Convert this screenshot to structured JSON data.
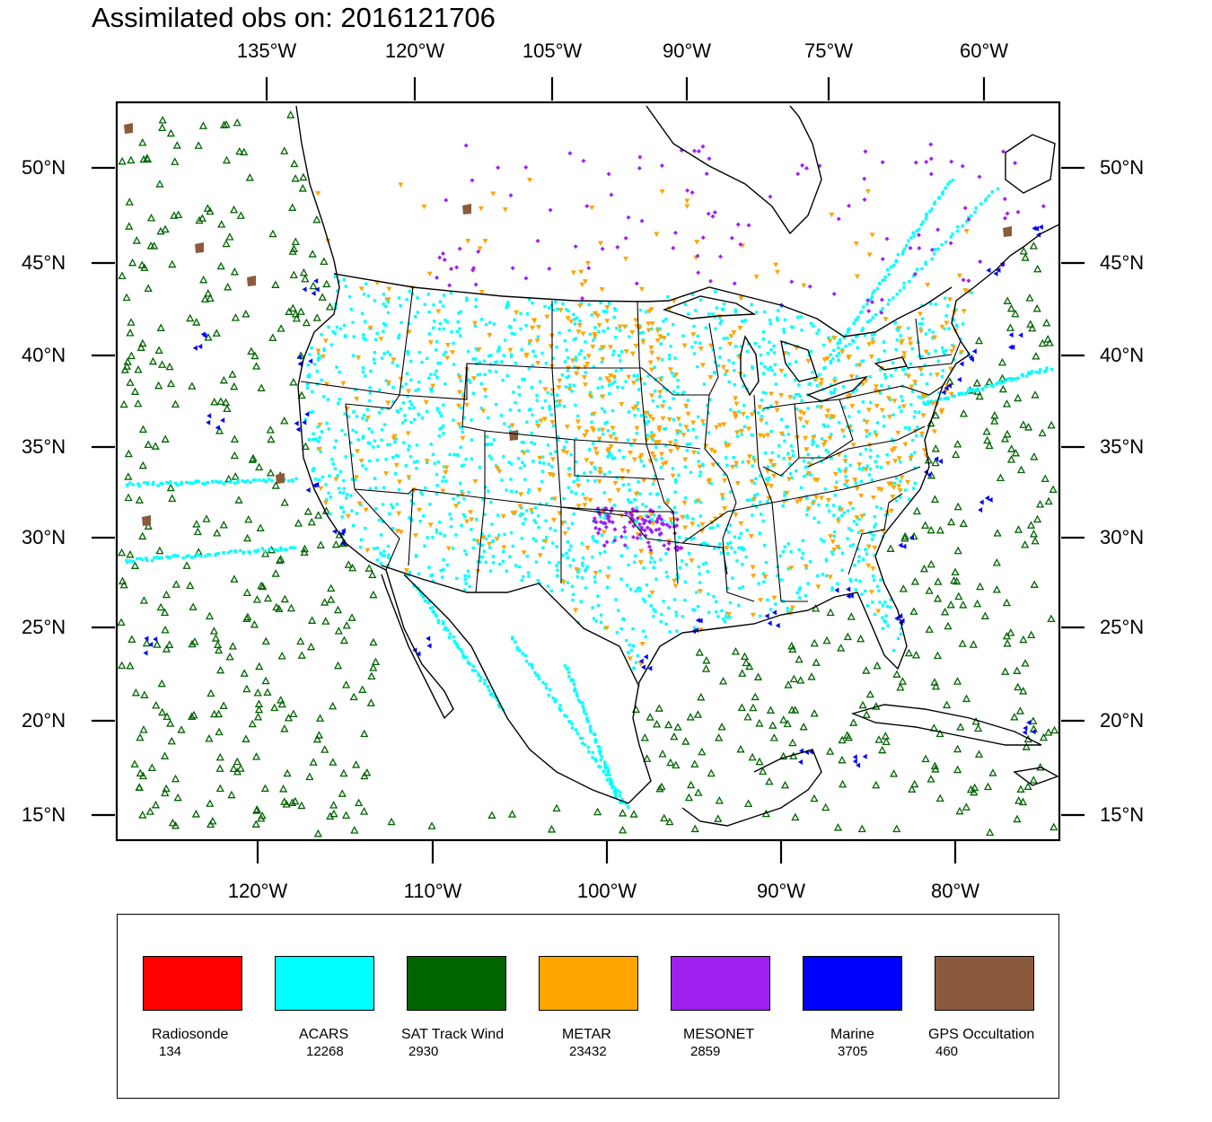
{
  "title": "Assimilated obs on: 2016121706",
  "axes": {
    "top_lon_labels": [
      "135°W",
      "120°W",
      "105°W",
      "90°W",
      "75°W",
      "60°W"
    ],
    "bottom_lon_labels": [
      "120°W",
      "110°W",
      "100°W",
      "90°W",
      "80°W"
    ],
    "lat_labels": [
      "50°N",
      "45°N",
      "40°N",
      "35°N",
      "30°N",
      "25°N",
      "20°N",
      "15°N"
    ]
  },
  "legend": [
    {
      "name": "Radiosonde",
      "count": "134",
      "color": "#ff0000"
    },
    {
      "name": "ACARS",
      "count": "12268",
      "color": "#00ffff"
    },
    {
      "name": "SAT Track Wind",
      "count": "2930",
      "color": "#006400"
    },
    {
      "name": "METAR",
      "count": "23432",
      "color": "#ffa500"
    },
    {
      "name": "MESONET",
      "count": "2859",
      "color": "#a020f0"
    },
    {
      "name": "Marine",
      "count": "3705",
      "color": "#0000ff"
    },
    {
      "name": "GPS Occultation",
      "count": "460",
      "color": "#8b5a3c"
    }
  ]
}
